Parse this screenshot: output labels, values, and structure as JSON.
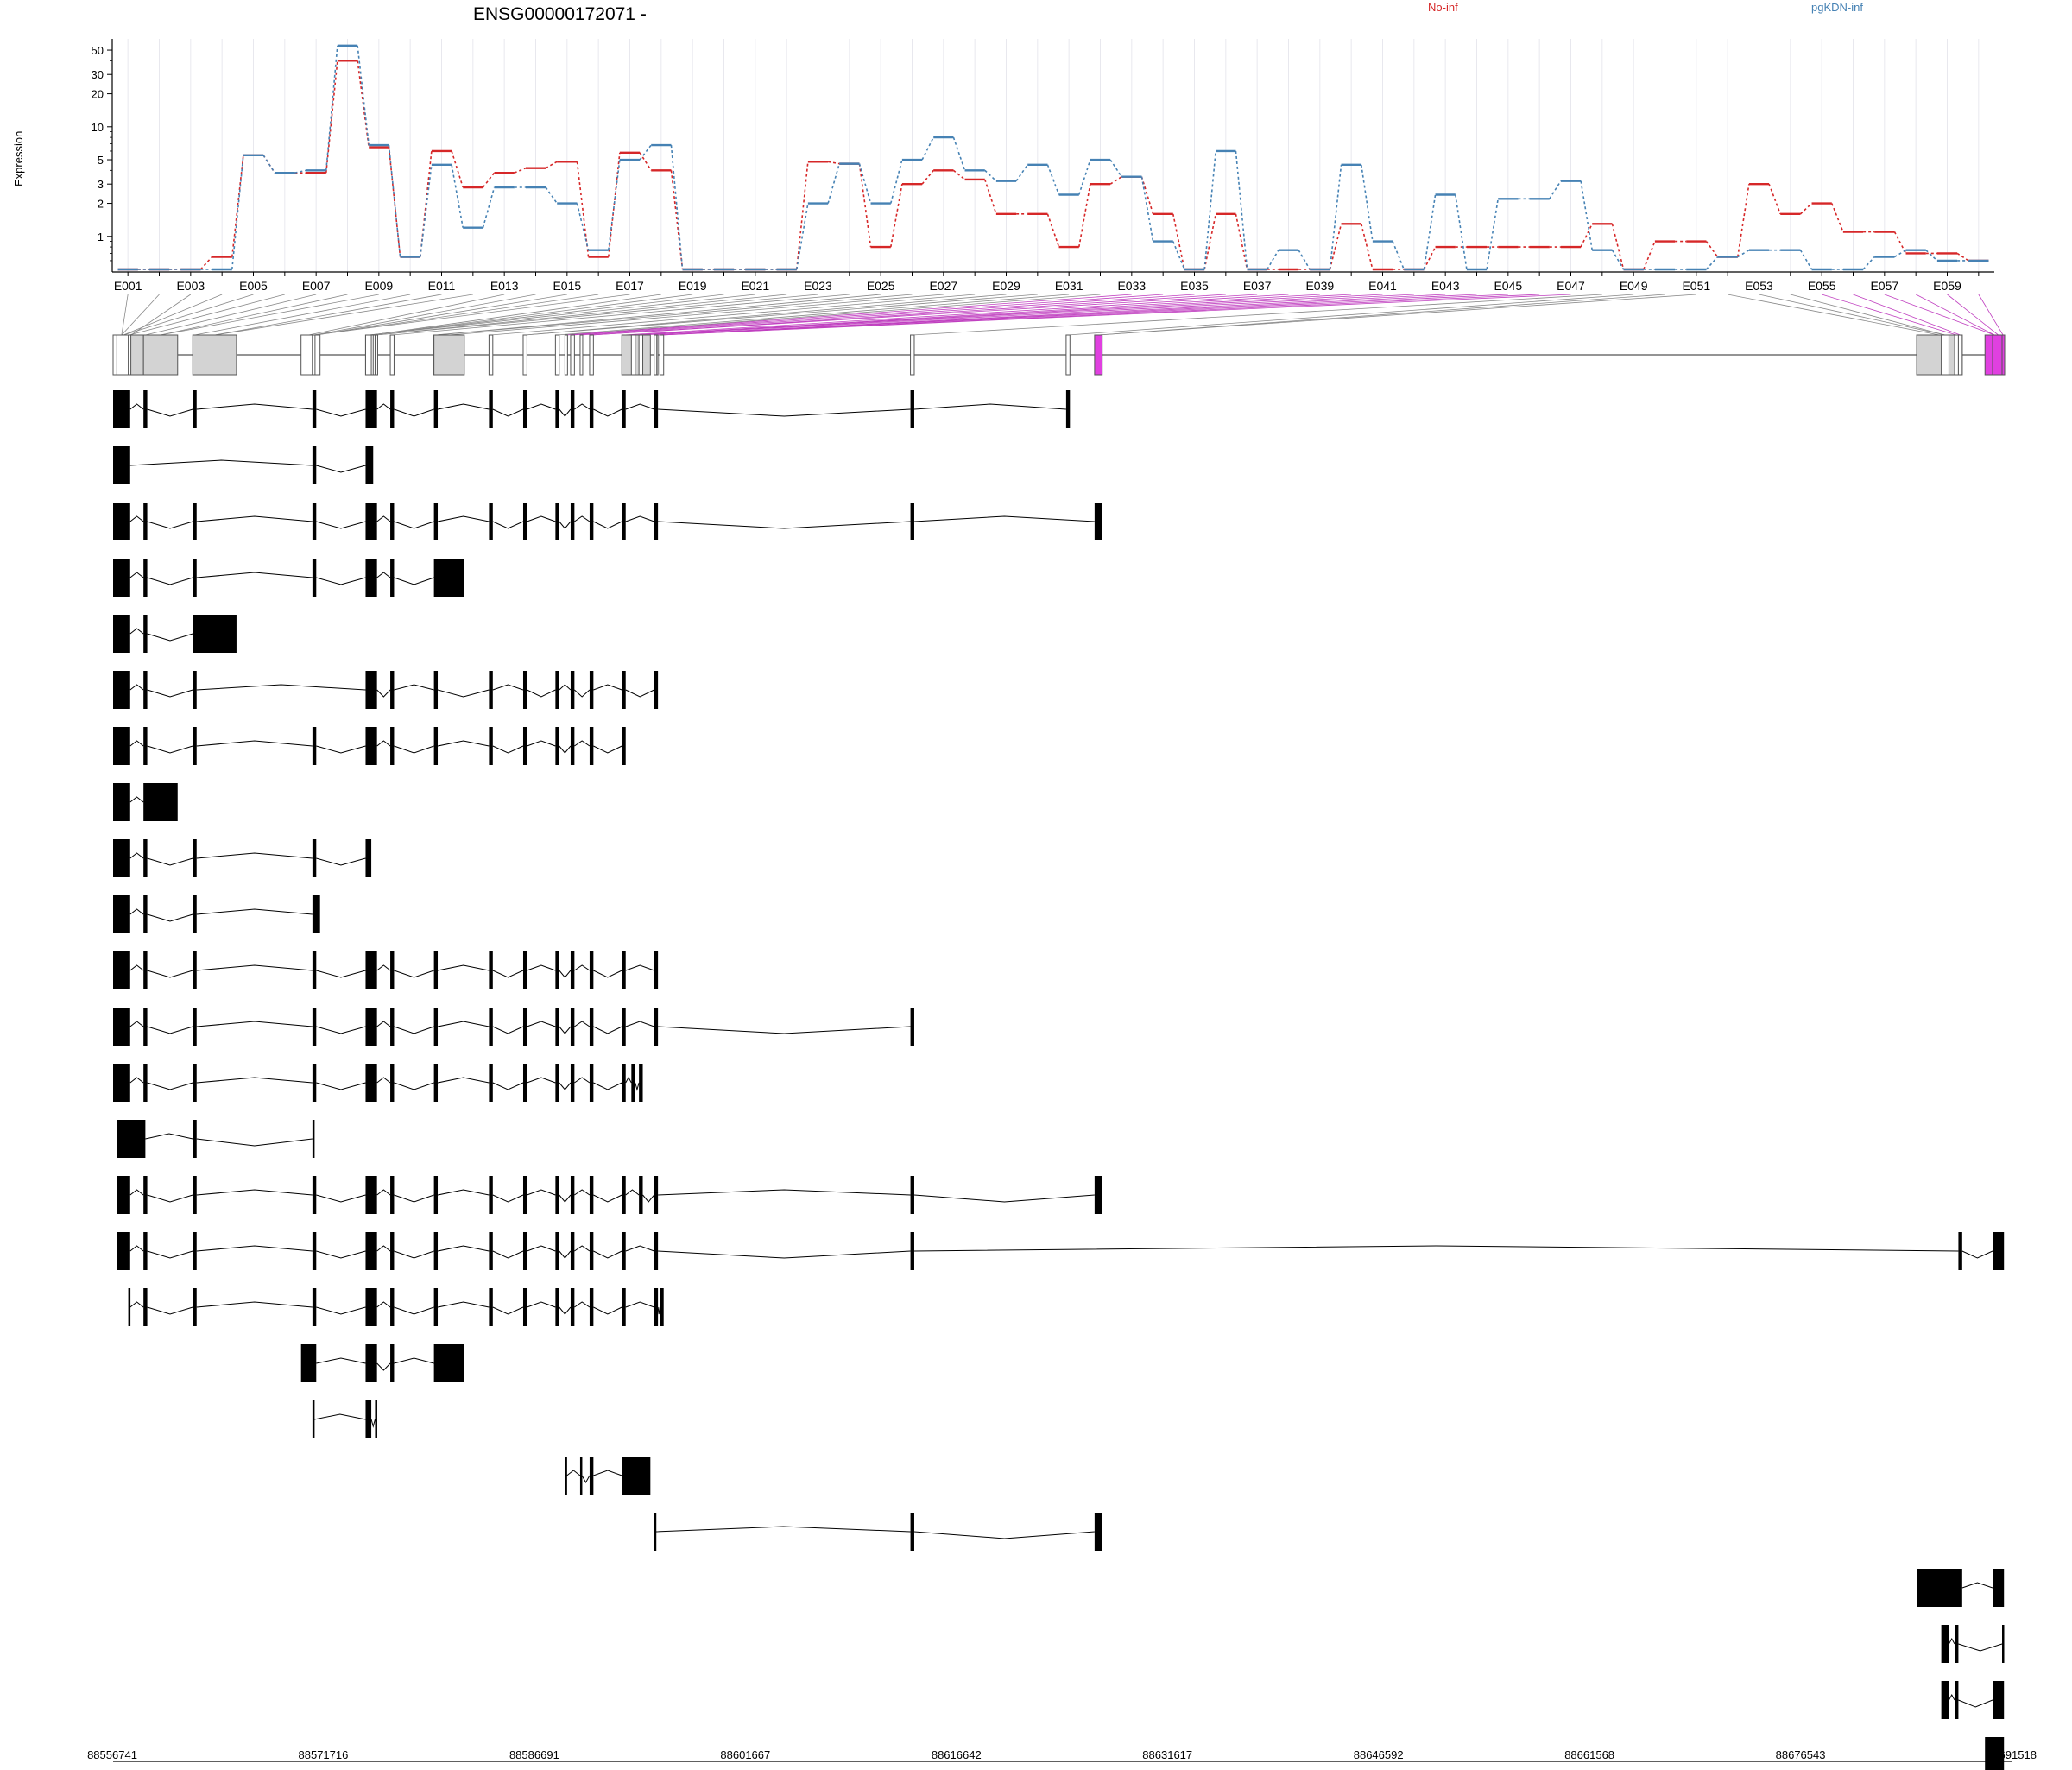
{
  "chart_data": {
    "type": "line",
    "title": "ENSG00000172071 -",
    "xlabel": "",
    "ylabel": "Expression",
    "y_scale": "log",
    "ylim": [
      0.5,
      60
    ],
    "y_ticks": [
      1,
      2,
      3,
      5,
      10,
      20,
      30,
      50
    ],
    "grid": true,
    "legend_placement": "top",
    "exon_tick_labels": [
      "E001",
      "E003",
      "E005",
      "E007",
      "E009",
      "E011",
      "E013",
      "E015",
      "E017",
      "E019",
      "E021",
      "E023",
      "E025",
      "E027",
      "E029",
      "E031",
      "E033",
      "E035",
      "E037",
      "E039",
      "E041",
      "E043",
      "E045",
      "E047",
      "E049",
      "E051",
      "E053",
      "E055",
      "E057",
      "E059"
    ],
    "series": [
      {
        "name": "No-inf",
        "color": "#d62728",
        "values": [
          0.5,
          0.5,
          0.5,
          0.65,
          5.5,
          3.8,
          3.8,
          40,
          6.5,
          0.65,
          6,
          2.8,
          3.8,
          4.2,
          4.8,
          0.65,
          5.8,
          4,
          0.5,
          0.5,
          0.5,
          0.5,
          4.8,
          4.6,
          0.8,
          3,
          4,
          3.3,
          1.6,
          1.6,
          0.8,
          3,
          3.5,
          1.6,
          0.5,
          1.6,
          0.5,
          0.5,
          0.5,
          1.3,
          0.5,
          0.5,
          0.8,
          0.8,
          0.8,
          0.8,
          0.8,
          1.3,
          0.5,
          0.9,
          0.9,
          0.65,
          3,
          1.6,
          2,
          1.1,
          1.1,
          0.7,
          0.7,
          0.6
        ]
      },
      {
        "name": "pgKDN-inf",
        "color": "#4682b4",
        "values": [
          0.5,
          0.5,
          0.5,
          0.5,
          5.5,
          3.8,
          4,
          55,
          6.8,
          0.65,
          4.5,
          1.2,
          2.8,
          2.8,
          2,
          0.75,
          5,
          6.8,
          0.5,
          0.5,
          0.5,
          0.5,
          2,
          4.6,
          2,
          5,
          8,
          4,
          3.2,
          4.5,
          2.4,
          5,
          3.5,
          0.9,
          0.5,
          6,
          0.5,
          0.75,
          0.5,
          4.5,
          0.9,
          0.5,
          2.4,
          0.5,
          2.2,
          2.2,
          3.2,
          0.75,
          0.5,
          0.5,
          0.5,
          0.65,
          0.75,
          0.75,
          0.5,
          0.5,
          0.65,
          0.75,
          0.6,
          0.6
        ]
      }
    ],
    "genomic_axis": {
      "labels": [
        "88556741",
        "88571716",
        "88586691",
        "88601667",
        "88616642",
        "88631617",
        "88646592",
        "88661568",
        "88676543",
        "88691518"
      ],
      "start": 88556741,
      "end": 88691518
    },
    "transcripts": [
      [
        [
          0.0,
          0.9,
          0
        ],
        [
          1.6,
          1.8,
          0
        ],
        [
          4.2,
          4.4,
          0
        ],
        [
          10.5,
          10.7,
          0
        ],
        [
          13.3,
          13.9,
          0
        ],
        [
          14.6,
          14.8,
          0
        ],
        [
          16.9,
          17.1,
          0
        ],
        [
          19.8,
          20.0,
          0
        ],
        [
          21.6,
          21.8,
          0
        ],
        [
          23.3,
          23.5,
          0
        ],
        [
          24.1,
          24.3,
          0
        ],
        [
          25.1,
          25.3,
          0
        ],
        [
          26.8,
          27.0,
          0
        ],
        [
          28.5,
          28.7,
          0
        ],
        [
          42.0,
          42.2,
          0
        ],
        [
          50.2,
          50.4,
          0
        ]
      ],
      [
        [
          0.0,
          0.9,
          0
        ],
        [
          10.5,
          10.7,
          0
        ],
        [
          13.3,
          13.7,
          0
        ]
      ],
      [
        [
          0.0,
          0.9,
          0
        ],
        [
          1.6,
          1.8,
          0
        ],
        [
          4.2,
          4.4,
          0
        ],
        [
          10.5,
          10.7,
          0
        ],
        [
          13.3,
          13.9,
          0
        ],
        [
          14.6,
          14.8,
          0
        ],
        [
          16.9,
          17.1,
          0
        ],
        [
          19.8,
          20.0,
          0
        ],
        [
          21.6,
          21.8,
          0
        ],
        [
          23.3,
          23.5,
          0
        ],
        [
          24.1,
          24.3,
          0
        ],
        [
          25.1,
          25.3,
          0
        ],
        [
          26.8,
          27.0,
          0
        ],
        [
          28.5,
          28.7,
          0
        ],
        [
          42.0,
          42.2,
          0
        ],
        [
          51.7,
          52.1,
          0
        ]
      ],
      [
        [
          0.0,
          0.9,
          0
        ],
        [
          1.6,
          1.8,
          0
        ],
        [
          4.2,
          4.4,
          0
        ],
        [
          10.5,
          10.7,
          0
        ],
        [
          13.3,
          13.9,
          0
        ],
        [
          14.6,
          14.8,
          0
        ],
        [
          16.9,
          18.5,
          0
        ]
      ],
      [
        [
          0.0,
          0.9,
          0
        ],
        [
          1.6,
          1.8,
          0
        ],
        [
          4.2,
          6.5,
          0
        ]
      ],
      [
        [
          0.0,
          0.9,
          0
        ],
        [
          1.6,
          1.8,
          0
        ],
        [
          4.2,
          4.4,
          0
        ],
        [
          13.3,
          13.9,
          0
        ],
        [
          14.6,
          14.8,
          0
        ],
        [
          16.9,
          17.1,
          0
        ],
        [
          19.8,
          20.0,
          0
        ],
        [
          21.6,
          21.8,
          0
        ],
        [
          23.3,
          23.5,
          0
        ],
        [
          24.1,
          24.3,
          0
        ],
        [
          25.1,
          25.3,
          0
        ],
        [
          26.8,
          27.0,
          0
        ],
        [
          28.5,
          28.7,
          0
        ]
      ],
      [
        [
          0.0,
          0.9,
          0
        ],
        [
          1.6,
          1.8,
          0
        ],
        [
          4.2,
          4.4,
          0
        ],
        [
          10.5,
          10.7,
          0
        ],
        [
          13.3,
          13.9,
          0
        ],
        [
          14.6,
          14.8,
          0
        ],
        [
          16.9,
          17.1,
          0
        ],
        [
          19.8,
          20.0,
          0
        ],
        [
          21.6,
          21.8,
          0
        ],
        [
          23.3,
          23.5,
          0
        ],
        [
          24.1,
          24.3,
          0
        ],
        [
          25.1,
          25.3,
          0
        ],
        [
          26.8,
          27.0,
          0
        ]
      ],
      [
        [
          0.0,
          0.9,
          0
        ],
        [
          1.6,
          3.4,
          0
        ]
      ],
      [
        [
          0.0,
          0.9,
          0
        ],
        [
          1.6,
          1.8,
          0
        ],
        [
          4.2,
          4.4,
          0
        ],
        [
          10.5,
          10.7,
          0
        ],
        [
          13.3,
          13.6,
          0
        ]
      ],
      [
        [
          0.0,
          0.9,
          0
        ],
        [
          1.6,
          1.8,
          0
        ],
        [
          4.2,
          4.4,
          0
        ],
        [
          10.5,
          10.9,
          0
        ]
      ],
      [
        [
          0.0,
          0.9,
          0
        ],
        [
          1.6,
          1.8,
          0
        ],
        [
          4.2,
          4.4,
          0
        ],
        [
          10.5,
          10.7,
          0
        ],
        [
          13.3,
          13.9,
          0
        ],
        [
          14.6,
          14.8,
          0
        ],
        [
          16.9,
          17.1,
          0
        ],
        [
          19.8,
          20.0,
          0
        ],
        [
          21.6,
          21.8,
          0
        ],
        [
          23.3,
          23.5,
          0
        ],
        [
          24.1,
          24.3,
          0
        ],
        [
          25.1,
          25.3,
          0
        ],
        [
          26.8,
          27.0,
          0
        ],
        [
          28.5,
          28.7,
          0
        ]
      ],
      [
        [
          0.0,
          0.9,
          0
        ],
        [
          1.6,
          1.8,
          0
        ],
        [
          4.2,
          4.4,
          0
        ],
        [
          10.5,
          10.7,
          0
        ],
        [
          13.3,
          13.9,
          0
        ],
        [
          14.6,
          14.8,
          0
        ],
        [
          16.9,
          17.1,
          0
        ],
        [
          19.8,
          20.0,
          0
        ],
        [
          21.6,
          21.8,
          0
        ],
        [
          23.3,
          23.5,
          0
        ],
        [
          24.1,
          24.3,
          0
        ],
        [
          25.1,
          25.3,
          0
        ],
        [
          26.8,
          27.0,
          0
        ],
        [
          28.5,
          28.7,
          0
        ],
        [
          42.0,
          42.2,
          0
        ]
      ],
      [
        [
          0.0,
          0.9,
          0
        ],
        [
          1.6,
          1.8,
          0
        ],
        [
          4.2,
          4.4,
          0
        ],
        [
          10.5,
          10.7,
          0
        ],
        [
          13.3,
          13.9,
          0
        ],
        [
          14.6,
          14.8,
          0
        ],
        [
          16.9,
          17.1,
          0
        ],
        [
          19.8,
          20.0,
          0
        ],
        [
          21.6,
          21.8,
          0
        ],
        [
          23.3,
          23.5,
          0
        ],
        [
          24.1,
          24.3,
          0
        ],
        [
          25.1,
          25.3,
          0
        ],
        [
          26.8,
          27.0,
          0
        ],
        [
          27.3,
          27.5,
          0
        ],
        [
          27.7,
          27.9,
          0
        ]
      ],
      [
        [
          0.2,
          1.7,
          0
        ],
        [
          4.2,
          4.4,
          0
        ],
        [
          10.5,
          10.6,
          0
        ]
      ],
      [
        [
          0.2,
          0.9,
          0
        ],
        [
          1.6,
          1.8,
          0
        ],
        [
          4.2,
          4.4,
          0
        ],
        [
          10.5,
          10.7,
          0
        ],
        [
          13.3,
          13.9,
          0
        ],
        [
          14.6,
          14.8,
          0
        ],
        [
          16.9,
          17.1,
          0
        ],
        [
          19.8,
          20.0,
          0
        ],
        [
          21.6,
          21.8,
          0
        ],
        [
          23.3,
          23.5,
          0
        ],
        [
          24.1,
          24.3,
          0
        ],
        [
          25.1,
          25.3,
          0
        ],
        [
          26.8,
          27.0,
          0
        ],
        [
          27.7,
          27.9,
          0
        ],
        [
          28.5,
          28.7,
          0
        ],
        [
          42.0,
          42.2,
          0
        ],
        [
          51.7,
          52.1,
          0
        ]
      ],
      [
        [
          0.2,
          0.9,
          0
        ],
        [
          1.6,
          1.8,
          0
        ],
        [
          4.2,
          4.4,
          0
        ],
        [
          10.5,
          10.7,
          0
        ],
        [
          13.3,
          13.9,
          0
        ],
        [
          14.6,
          14.8,
          0
        ],
        [
          16.9,
          17.1,
          0
        ],
        [
          19.8,
          20.0,
          0
        ],
        [
          21.6,
          21.8,
          0
        ],
        [
          23.3,
          23.5,
          0
        ],
        [
          24.1,
          24.3,
          0
        ],
        [
          25.1,
          25.3,
          0
        ],
        [
          26.8,
          27.0,
          0
        ],
        [
          28.5,
          28.7,
          0
        ],
        [
          42.0,
          42.2,
          0
        ],
        [
          97.2,
          97.4,
          0
        ],
        [
          99.0,
          99.6,
          0
        ]
      ],
      [
        [
          0.8,
          0.9,
          0
        ],
        [
          1.6,
          1.8,
          0
        ],
        [
          4.2,
          4.4,
          0
        ],
        [
          10.5,
          10.7,
          0
        ],
        [
          13.3,
          13.9,
          0
        ],
        [
          14.6,
          14.8,
          0
        ],
        [
          16.9,
          17.1,
          0
        ],
        [
          19.8,
          20.0,
          0
        ],
        [
          21.6,
          21.8,
          0
        ],
        [
          23.3,
          23.5,
          0
        ],
        [
          24.1,
          24.3,
          0
        ],
        [
          25.1,
          25.3,
          0
        ],
        [
          26.8,
          27.0,
          0
        ],
        [
          28.5,
          28.7,
          0
        ],
        [
          28.8,
          29.0,
          0
        ]
      ],
      [
        [
          9.9,
          10.7,
          0
        ],
        [
          13.3,
          13.9,
          0
        ],
        [
          14.6,
          14.8,
          0
        ],
        [
          16.9,
          18.5,
          0
        ]
      ],
      [
        [
          10.5,
          10.6,
          0
        ],
        [
          13.3,
          13.6,
          0
        ],
        [
          13.8,
          13.9,
          0
        ]
      ],
      [
        [
          23.8,
          23.9,
          0
        ],
        [
          24.6,
          24.7,
          0
        ],
        [
          25.1,
          25.3,
          0
        ],
        [
          26.8,
          28.3,
          0
        ]
      ],
      [
        [
          28.5,
          28.6,
          0
        ],
        [
          42.0,
          42.2,
          0
        ],
        [
          51.7,
          52.1,
          0
        ]
      ],
      [
        [
          95.0,
          97.4,
          0
        ],
        [
          99.0,
          99.6,
          0
        ]
      ],
      [
        [
          96.3,
          96.7,
          0
        ],
        [
          97.0,
          97.2,
          0
        ],
        [
          99.5,
          99.6,
          0
        ]
      ],
      [
        [
          96.3,
          96.7,
          0
        ],
        [
          97.0,
          97.2,
          0
        ],
        [
          99.0,
          99.6,
          0
        ]
      ],
      [
        [
          98.6,
          99.6,
          0
        ]
      ]
    ]
  }
}
